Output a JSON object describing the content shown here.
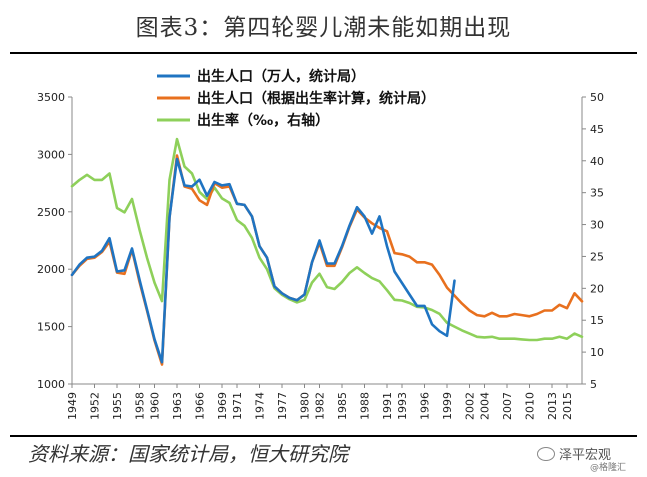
{
  "title": "图表3：第四轮婴儿潮未能如期出现",
  "source": "资料来源：国家统计局，恒大研究院",
  "watermark": "泽平宏观",
  "watermark_small": "@格隆汇",
  "colors": {
    "births_official": "#1f74c2",
    "births_computed": "#e8701e",
    "birth_rate": "#8ed05a"
  },
  "chart_data": {
    "type": "line",
    "left_axis": {
      "ylim": [
        1000,
        3500
      ],
      "ticks": [
        1000,
        1500,
        2000,
        2500,
        3000,
        3500
      ]
    },
    "right_axis": {
      "ylim": [
        5,
        50
      ],
      "ticks": [
        5,
        10,
        15,
        20,
        25,
        30,
        35,
        40,
        45,
        50
      ]
    },
    "xlim": [
      1949,
      2017
    ],
    "x_ticks": [
      "1949",
      "1952",
      "1955",
      "1958",
      "1960",
      "1963",
      "1966",
      "1969",
      "1971",
      "1974",
      "1977",
      "1980",
      "1982",
      "1985",
      "1988",
      "1991",
      "1993",
      "1996",
      "1999",
      "2002",
      "2004",
      "2007",
      "2010",
      "2013",
      "2015"
    ],
    "legend": [
      "出生人口（万人，统计局）",
      "出生人口（根据出生率计算，统计局）",
      "出生率（‰，右轴）"
    ],
    "series": [
      {
        "name": "出生人口（万人，统计局）",
        "axis": "left",
        "x": [
          1949,
          1950,
          1951,
          1952,
          1953,
          1954,
          1955,
          1956,
          1957,
          1958,
          1959,
          1960,
          1961,
          1962,
          1963,
          1964,
          1965,
          1966,
          1967,
          1968,
          1969,
          1970,
          1971,
          1972,
          1973,
          1974,
          1975,
          1976,
          1977,
          1978,
          1979,
          1980,
          1981,
          1982,
          1983,
          1984,
          1985,
          1986,
          1987,
          1988,
          1989,
          1990,
          1991,
          1992,
          1993,
          1994,
          1995,
          1996,
          1997,
          1998,
          1999,
          2000
        ],
        "y": [
          1950,
          2040,
          2100,
          2110,
          2160,
          2270,
          1980,
          1990,
          2180,
          1910,
          1650,
          1390,
          1190,
          2450,
          2960,
          2730,
          2720,
          2780,
          2640,
          2760,
          2730,
          2740,
          2570,
          2560,
          2460,
          2200,
          2100,
          1850,
          1790,
          1750,
          1730,
          1780,
          2060,
          2250,
          2050,
          2050,
          2200,
          2380,
          2540,
          2460,
          2310,
          2460,
          2200,
          1980,
          1880,
          1780,
          1680,
          1680,
          1520,
          1460,
          1420,
          1900
        ]
      },
      {
        "name": "出生人口（根据出生率计算，统计局）",
        "axis": "left",
        "x": [
          1949,
          1950,
          1951,
          1952,
          1953,
          1954,
          1955,
          1956,
          1957,
          1958,
          1959,
          1960,
          1961,
          1962,
          1963,
          1964,
          1965,
          1966,
          1967,
          1968,
          1969,
          1970,
          1971,
          1972,
          1973,
          1974,
          1975,
          1976,
          1977,
          1978,
          1979,
          1980,
          1981,
          1982,
          1983,
          1984,
          1985,
          1986,
          1987,
          1988,
          1989,
          1990,
          1991,
          1992,
          1993,
          1994,
          1995,
          1996,
          1997,
          1998,
          1999,
          2000,
          2001,
          2002,
          2003,
          2004,
          2005,
          2006,
          2007,
          2008,
          2009,
          2010,
          2011,
          2012,
          2013,
          2014,
          2015,
          2016,
          2017
        ],
        "y": [
          1950,
          2030,
          2090,
          2100,
          2150,
          2240,
          1970,
          1960,
          2170,
          1890,
          1640,
          1380,
          1170,
          2450,
          2990,
          2720,
          2700,
          2600,
          2560,
          2750,
          2710,
          2720,
          2570,
          2560,
          2460,
          2200,
          2100,
          1850,
          1790,
          1750,
          1730,
          1780,
          2060,
          2230,
          2030,
          2030,
          2190,
          2370,
          2520,
          2450,
          2400,
          2360,
          2330,
          2140,
          2130,
          2110,
          2060,
          2060,
          2040,
          1950,
          1840,
          1770,
          1700,
          1640,
          1600,
          1590,
          1620,
          1590,
          1590,
          1610,
          1600,
          1590,
          1610,
          1640,
          1640,
          1690,
          1660,
          1790,
          1720
        ]
      },
      {
        "name": "出生率（‰，右轴）",
        "axis": "right",
        "x": [
          1949,
          1950,
          1951,
          1952,
          1953,
          1954,
          1955,
          1956,
          1957,
          1958,
          1959,
          1960,
          1961,
          1962,
          1963,
          1964,
          1965,
          1966,
          1967,
          1968,
          1969,
          1970,
          1971,
          1972,
          1973,
          1974,
          1975,
          1976,
          1977,
          1978,
          1979,
          1980,
          1981,
          1982,
          1983,
          1984,
          1985,
          1986,
          1987,
          1988,
          1989,
          1990,
          1991,
          1992,
          1993,
          1994,
          1995,
          1996,
          1997,
          1998,
          1999,
          2000,
          2001,
          2002,
          2003,
          2004,
          2005,
          2006,
          2007,
          2008,
          2009,
          2010,
          2011,
          2012,
          2013,
          2014,
          2015,
          2016,
          2017
        ],
        "y": [
          36.0,
          37.0,
          37.8,
          37.0,
          37.0,
          38.0,
          32.6,
          31.9,
          34.0,
          29.2,
          24.8,
          20.9,
          18.0,
          37.0,
          43.4,
          39.1,
          38.0,
          35.1,
          34.0,
          35.8,
          34.1,
          33.4,
          30.7,
          29.8,
          27.9,
          24.8,
          23.0,
          20.0,
          19.0,
          18.3,
          17.8,
          18.2,
          20.9,
          22.3,
          20.2,
          19.9,
          21.0,
          22.4,
          23.3,
          22.4,
          21.6,
          21.1,
          19.7,
          18.2,
          18.1,
          17.7,
          17.1,
          17.0,
          16.6,
          16.0,
          14.6,
          14.0,
          13.4,
          12.9,
          12.4,
          12.3,
          12.4,
          12.1,
          12.1,
          12.1,
          12.0,
          11.9,
          11.9,
          12.1,
          12.1,
          12.4,
          12.1,
          12.9,
          12.4
        ]
      }
    ]
  }
}
